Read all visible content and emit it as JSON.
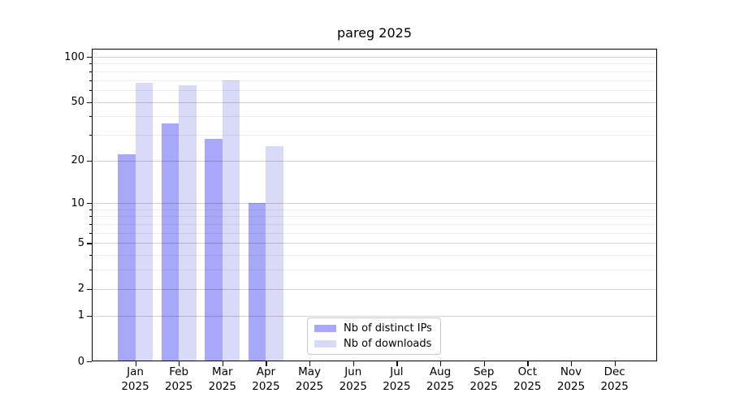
{
  "title": "pareg 2025",
  "chart_data": {
    "type": "bar",
    "title": "pareg 2025",
    "y_scale": "log1p",
    "grid": "on",
    "legend_position": "lower-center-inside",
    "categories": [
      "Jan",
      "Feb",
      "Mar",
      "Apr",
      "May",
      "Jun",
      "Jul",
      "Aug",
      "Sep",
      "Oct",
      "Nov",
      "Dec"
    ],
    "category_year_line": "2025",
    "series": [
      {
        "name": "Nb of distinct IPs",
        "color": "#a8a8f8",
        "values": [
          22,
          36,
          28,
          10,
          0,
          0,
          0,
          0,
          0,
          0,
          0,
          0
        ]
      },
      {
        "name": "Nb of downloads",
        "color": "#d9d9f8",
        "values": [
          67,
          65,
          70,
          25,
          0,
          0,
          0,
          0,
          0,
          0,
          0,
          0
        ]
      }
    ],
    "y_major_ticks": [
      0,
      1,
      2,
      5,
      10,
      20,
      50,
      100
    ],
    "y_minor_ticks": [
      3,
      4,
      6,
      7,
      8,
      9,
      30,
      40,
      60,
      70,
      80,
      90
    ],
    "ylim": [
      0,
      113
    ]
  },
  "colors": {
    "background": "#ffffff",
    "spine": "#000000",
    "grid_major": "rgba(0,0,0,0.18)",
    "grid_minor": "rgba(0,0,0,0.07)",
    "legend_border": "#c9c9c9",
    "series_ips": "#a8a8f8",
    "series_downloads": "#d9d9f8"
  }
}
